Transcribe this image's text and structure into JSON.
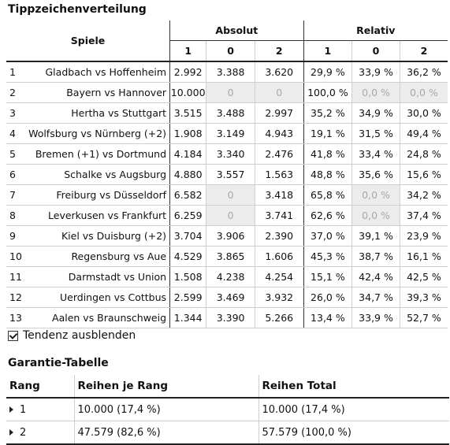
{
  "title": "Tippzeichenverteilung",
  "headers": {
    "spiele": "Spiele",
    "absolut": "Absolut",
    "relativ": "Relativ",
    "c1": "1",
    "c0": "0",
    "c2": "2"
  },
  "rows": [
    {
      "n": "1",
      "teams": "Gladbach vs Hoffenheim",
      "a1": "2.992",
      "a0": "3.388",
      "a2": "3.620",
      "r1": "29,9 %",
      "r0": "33,9 %",
      "r2": "36,2 %"
    },
    {
      "n": "2",
      "teams": "Bayern vs Hannover",
      "a1": "10.000",
      "a0": "0",
      "a2": "0",
      "r1": "100,0 %",
      "r0": "0,0 %",
      "r2": "0,0 %"
    },
    {
      "n": "3",
      "teams": "Hertha vs Stuttgart",
      "a1": "3.515",
      "a0": "3.488",
      "a2": "2.997",
      "r1": "35,2 %",
      "r0": "34,9 %",
      "r2": "30,0 %"
    },
    {
      "n": "4",
      "teams": "Wolfsburg vs Nürnberg (+2)",
      "a1": "1.908",
      "a0": "3.149",
      "a2": "4.943",
      "r1": "19,1 %",
      "r0": "31,5 %",
      "r2": "49,4 %"
    },
    {
      "n": "5",
      "teams": "Bremen (+1) vs Dortmund",
      "a1": "4.184",
      "a0": "3.340",
      "a2": "2.476",
      "r1": "41,8 %",
      "r0": "33,4 %",
      "r2": "24,8 %"
    },
    {
      "n": "6",
      "teams": "Schalke vs Augsburg",
      "a1": "4.880",
      "a0": "3.557",
      "a2": "1.563",
      "r1": "48,8 %",
      "r0": "35,6 %",
      "r2": "15,6 %"
    },
    {
      "n": "7",
      "teams": "Freiburg vs Düsseldorf",
      "a1": "6.582",
      "a0": "0",
      "a2": "3.418",
      "r1": "65,8 %",
      "r0": "0,0 %",
      "r2": "34,2 %"
    },
    {
      "n": "8",
      "teams": "Leverkusen vs Frankfurt",
      "a1": "6.259",
      "a0": "0",
      "a2": "3.741",
      "r1": "62,6 %",
      "r0": "0,0 %",
      "r2": "37,4 %"
    },
    {
      "n": "9",
      "teams": "Kiel vs Duisburg (+2)",
      "a1": "3.704",
      "a0": "3.906",
      "a2": "2.390",
      "r1": "37,0 %",
      "r0": "39,1 %",
      "r2": "23,9 %"
    },
    {
      "n": "10",
      "teams": "Regensburg vs Aue",
      "a1": "4.529",
      "a0": "3.865",
      "a2": "1.606",
      "r1": "45,3 %",
      "r0": "38,7 %",
      "r2": "16,1 %"
    },
    {
      "n": "11",
      "teams": "Darmstadt vs Union",
      "a1": "1.508",
      "a0": "4.238",
      "a2": "4.254",
      "r1": "15,1 %",
      "r0": "42,4 %",
      "r2": "42,5 %"
    },
    {
      "n": "12",
      "teams": "Uerdingen vs Cottbus",
      "a1": "2.599",
      "a0": "3.469",
      "a2": "3.932",
      "r1": "26,0 %",
      "r0": "34,7 %",
      "r2": "39,3 %"
    },
    {
      "n": "13",
      "teams": "Aalen vs Braunschweig",
      "a1": "1.344",
      "a0": "3.390",
      "a2": "5.266",
      "r1": "13,4 %",
      "r0": "33,9 %",
      "r2": "52,7 %"
    }
  ],
  "option": {
    "label": "Tendenz ausblenden",
    "checked": true
  },
  "garantie": {
    "title": "Garantie-Tabelle",
    "headers": {
      "rang": "Rang",
      "reihen_je_rang": "Reihen je Rang",
      "reihen_total": "Reihen Total"
    },
    "rows": [
      {
        "rang": "1",
        "je_rang": "10.000  (17,4 %)",
        "total": "10.000  (17,4 %)"
      },
      {
        "rang": "2",
        "je_rang": "47.579  (82,6 %)",
        "total": "57.579  (100,0 %)"
      }
    ]
  }
}
